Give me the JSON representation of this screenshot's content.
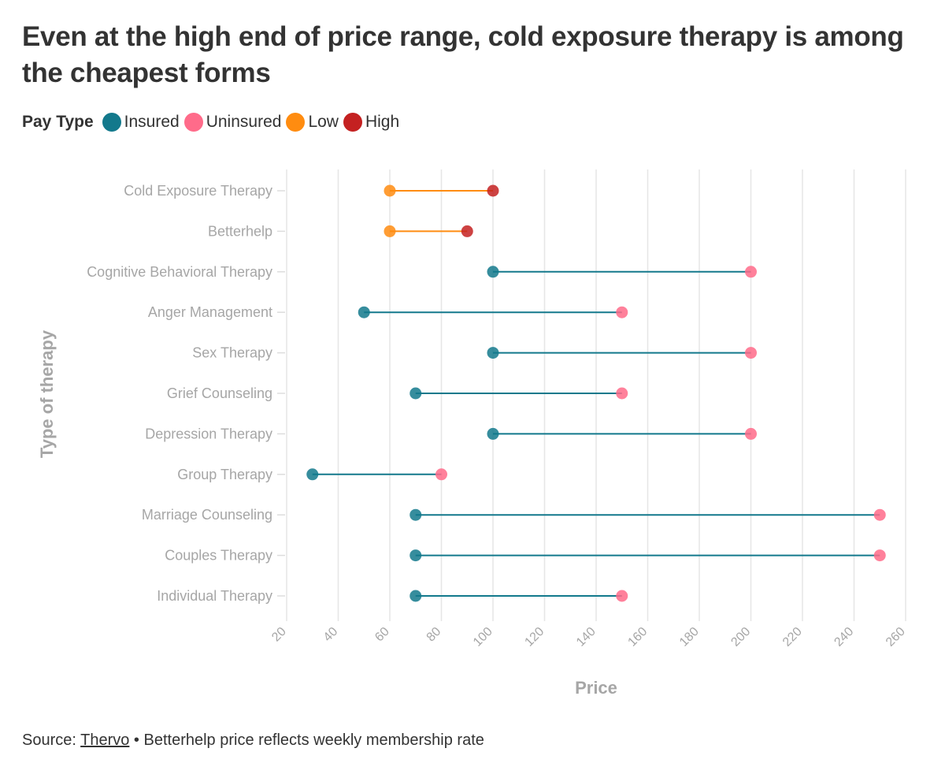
{
  "title": "Even at the high end of price range, cold exposure therapy is among the cheapest forms",
  "legend": {
    "title": "Pay Type",
    "items": [
      {
        "label": "Insured",
        "color": "#13798c"
      },
      {
        "label": "Uninsured",
        "color": "#ff6b8a"
      },
      {
        "label": "Low",
        "color": "#ff8c10"
      },
      {
        "label": "High",
        "color": "#c42121"
      }
    ]
  },
  "chart_data": {
    "type": "dumbbell",
    "xlabel": "Price",
    "ylabel": "Type of therapy",
    "xlim": [
      20,
      260
    ],
    "xticks": [
      20,
      40,
      60,
      80,
      100,
      120,
      140,
      160,
      180,
      200,
      220,
      240,
      260
    ],
    "grid": true,
    "rows": [
      {
        "category": "Cold Exposure Therapy",
        "start": 60,
        "end": 100,
        "start_type": "Low",
        "end_type": "High"
      },
      {
        "category": "Betterhelp",
        "start": 60,
        "end": 90,
        "start_type": "Low",
        "end_type": "High"
      },
      {
        "category": "Cognitive Behavioral Therapy",
        "start": 100,
        "end": 200,
        "start_type": "Insured",
        "end_type": "Uninsured"
      },
      {
        "category": "Anger Management",
        "start": 50,
        "end": 150,
        "start_type": "Insured",
        "end_type": "Uninsured"
      },
      {
        "category": "Sex Therapy",
        "start": 100,
        "end": 200,
        "start_type": "Insured",
        "end_type": "Uninsured"
      },
      {
        "category": "Grief Counseling",
        "start": 70,
        "end": 150,
        "start_type": "Insured",
        "end_type": "Uninsured"
      },
      {
        "category": "Depression Therapy",
        "start": 100,
        "end": 200,
        "start_type": "Insured",
        "end_type": "Uninsured"
      },
      {
        "category": "Group Therapy",
        "start": 30,
        "end": 80,
        "start_type": "Insured",
        "end_type": "Uninsured"
      },
      {
        "category": "Marriage Counseling",
        "start": 70,
        "end": 250,
        "start_type": "Insured",
        "end_type": "Uninsured"
      },
      {
        "category": "Couples Therapy",
        "start": 70,
        "end": 250,
        "start_type": "Insured",
        "end_type": "Uninsured"
      },
      {
        "category": "Individual Therapy",
        "start": 70,
        "end": 150,
        "start_type": "Insured",
        "end_type": "Uninsured"
      }
    ],
    "colors": {
      "Insured": "#13798c",
      "Uninsured": "#ff6b8a",
      "Low": "#ff8c10",
      "High": "#c42121",
      "line_insured": "#13798c",
      "line_low": "#ff8c10"
    }
  },
  "footer": {
    "prefix": "Source: ",
    "link": "Thervo",
    "note": " • Betterhelp price reflects weekly membership rate"
  }
}
